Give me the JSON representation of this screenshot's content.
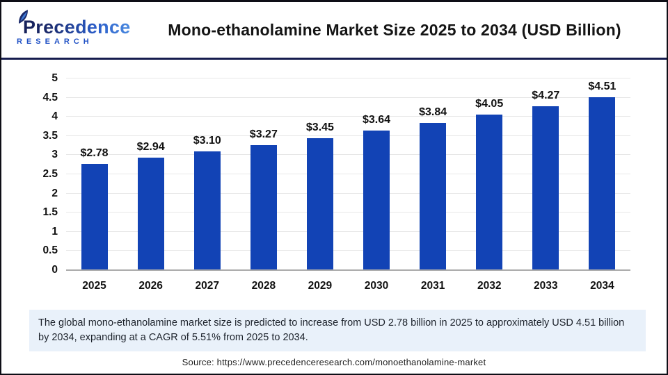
{
  "header": {
    "logo_line1": "Precedence",
    "logo_line2": "RESEARCH",
    "title": "Mono-ethanolamine Market Size 2025 to 2034 (USD Billion)"
  },
  "chart_data": {
    "type": "bar",
    "title": "Mono-ethanolamine Market Size 2025 to 2034 (USD Billion)",
    "categories": [
      "2025",
      "2026",
      "2027",
      "2028",
      "2029",
      "2030",
      "2031",
      "2032",
      "2033",
      "2034"
    ],
    "values": [
      2.78,
      2.94,
      3.1,
      3.27,
      3.45,
      3.64,
      3.84,
      4.05,
      4.27,
      4.51
    ],
    "value_labels": [
      "$2.78",
      "$2.94",
      "$3.10",
      "$3.27",
      "$3.45",
      "$3.64",
      "$3.84",
      "$4.05",
      "$4.27",
      "$4.51"
    ],
    "xlabel": "",
    "ylabel": "",
    "ylim": [
      0,
      5
    ],
    "ytick_step": 0.5,
    "ytick_labels": [
      "0",
      "0.5",
      "1",
      "1.5",
      "2",
      "2.5",
      "3",
      "3.5",
      "4",
      "4.5",
      "5"
    ],
    "grid": true,
    "legend_position": "none",
    "bar_color": "#1243b5"
  },
  "summary": {
    "text": "The global mono-ethanolamine market size is predicted to increase from USD 2.78 billion in 2025 to approximately USD 4.51 billion by 2034, expanding at a CAGR of 5.51% from 2025 to 2034."
  },
  "source": {
    "text": "Source: https://www.precedenceresearch.com/monoethanolamine-market"
  },
  "colors": {
    "bar_blue": "#1243b5",
    "header_rule_navy": "#161c4e",
    "summary_background": "#e9f1fa",
    "gridline_gray": "#e7e7e7",
    "axis_gray": "#ababab"
  }
}
